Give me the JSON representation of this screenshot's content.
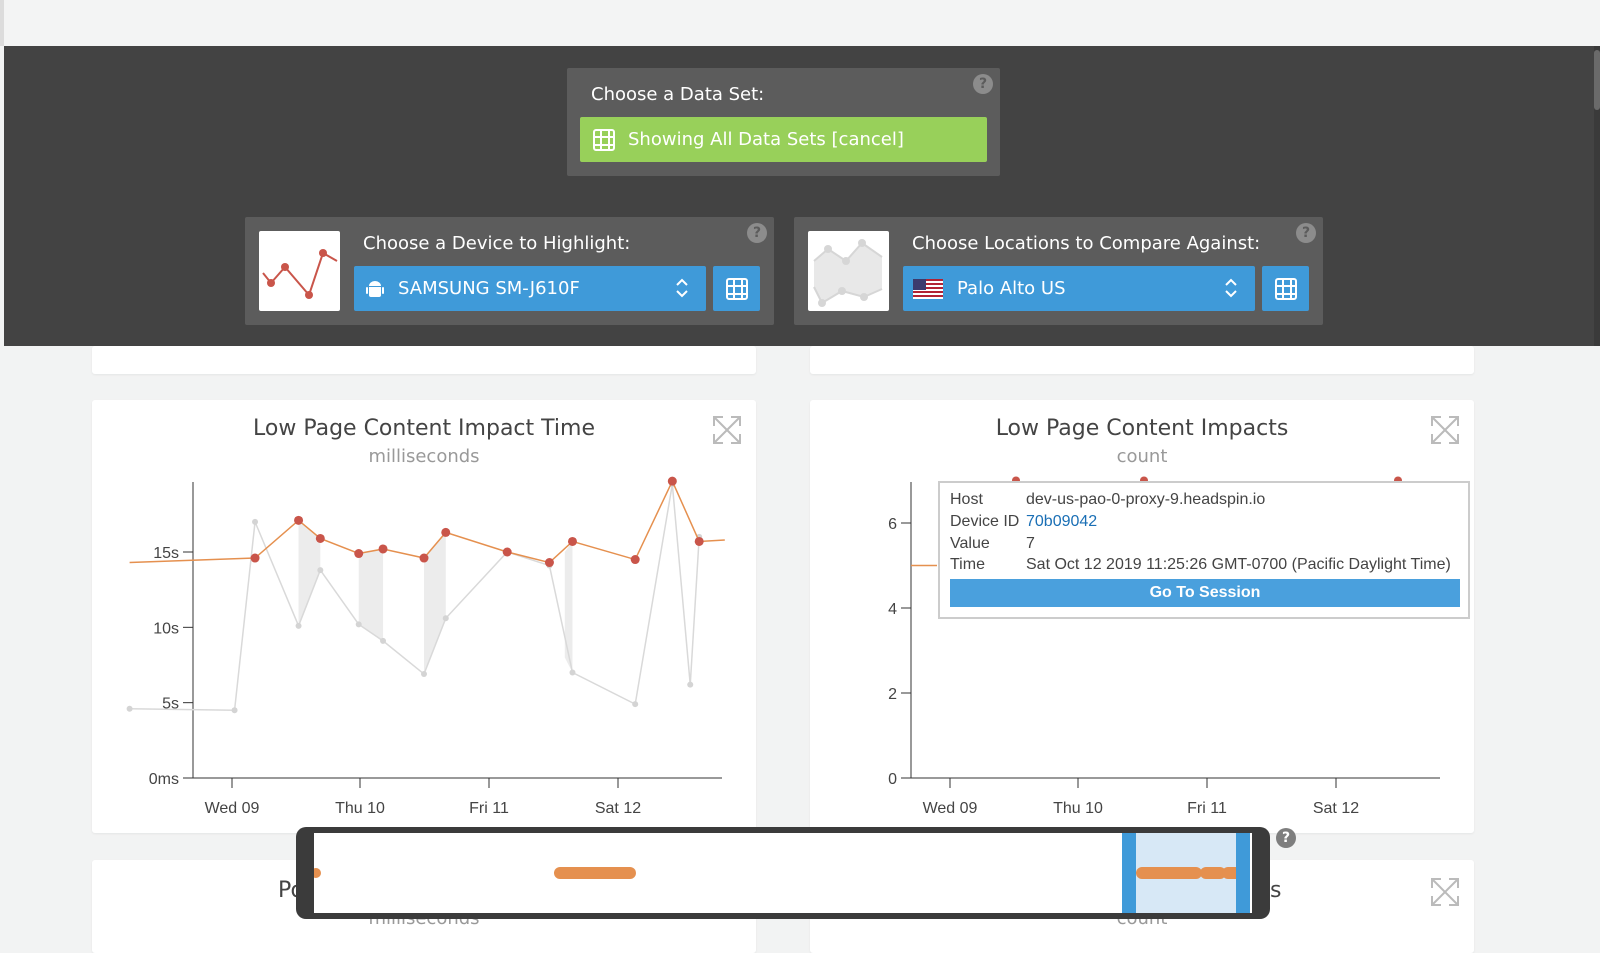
{
  "dataset_panel": {
    "label": "Choose a Data Set:",
    "button_label": "Showing All Data Sets [cancel]",
    "help": "?"
  },
  "device_panel": {
    "label": "Choose a Device to Highlight:",
    "selected_device": "SAMSUNG SM-J610F",
    "help": "?"
  },
  "location_panel": {
    "label": "Choose Locations to Compare Against:",
    "selected_location": "Palo Alto US",
    "help": "?"
  },
  "colors": {
    "dark_bar": "#434343",
    "panel": "#5c5c5c",
    "green": "#98d05a",
    "blue": "#3f9ad9",
    "highlight_series": "#e5904f",
    "highlight_dot": "#c9554a",
    "compare_series": "#d9d9d9"
  },
  "charts": [
    {
      "title": "Low Page Content Impact Time",
      "subtitle": "milliseconds",
      "y_ticks": [
        "0ms",
        "5s",
        "10s",
        "15s"
      ],
      "x_ticks": [
        "Wed 09",
        "Thu 10",
        "Fri 11",
        "Sat 12"
      ]
    },
    {
      "title": "Low Page Content Impacts",
      "subtitle": "count",
      "y_ticks": [
        "0",
        "2",
        "4",
        "6"
      ],
      "x_ticks": [
        "Wed 09",
        "Thu 10",
        "Fri 11",
        "Sat 12"
      ]
    }
  ],
  "chart_data": [
    {
      "type": "line",
      "title": "Low Page Content Impact Time",
      "ylabel": "milliseconds",
      "ylim": [
        0,
        20
      ],
      "y_unit": "seconds",
      "x_range_days": [
        8.2,
        12.9
      ],
      "x_ticks": [
        "Wed 09",
        "Thu 10",
        "Fri 11",
        "Sat 12"
      ],
      "series": [
        {
          "name": "SAMSUNG SM-J610F",
          "x": [
            8.2,
            9.18,
            9.52,
            9.69,
            9.99,
            10.18,
            10.5,
            10.67,
            11.15,
            11.48,
            11.66,
            12.15,
            12.44,
            12.65,
            12.85
          ],
          "y": [
            14.3,
            14.6,
            17.1,
            15.9,
            14.9,
            15.2,
            14.6,
            16.3,
            15.0,
            14.3,
            15.7,
            14.5,
            19.7,
            15.7,
            15.8
          ]
        },
        {
          "name": "Palo Alto US",
          "x": [
            8.2,
            9.02,
            9.18,
            9.52,
            9.69,
            9.99,
            10.18,
            10.5,
            10.67,
            11.15,
            11.48,
            11.66,
            12.15,
            12.44,
            12.58,
            12.65
          ],
          "y": [
            4.6,
            4.5,
            17.0,
            10.1,
            13.8,
            10.2,
            9.1,
            6.9,
            10.6,
            15.0,
            14.1,
            7.0,
            4.9,
            19.5,
            6.2,
            16.0
          ]
        }
      ]
    },
    {
      "type": "scatter",
      "title": "Low Page Content Impacts",
      "ylabel": "count",
      "ylim": [
        0,
        7
      ],
      "x_ticks": [
        "Wed 09",
        "Thu 10",
        "Fri 11",
        "Sat 12"
      ],
      "series": [
        {
          "name": "SAMSUNG SM-J610F",
          "x": [
            8.2,
            9.5,
            10.5,
            12.5
          ],
          "y": [
            5,
            7,
            7,
            7
          ]
        }
      ]
    }
  ],
  "tooltip": {
    "host_key": "Host",
    "host_val": "dev-us-pao-0-proxy-9.headspin.io",
    "device_key": "Device ID",
    "device_val": "70b09042",
    "value_key": "Value",
    "value_val": "7",
    "time_key": "Time",
    "time_val": "Sat Oct 12 2019 11:25:26 GMT-0700 (Pacific Daylight Time)",
    "button": "Go To Session"
  },
  "navigator": {
    "help": "?"
  },
  "lower_cards": [
    {
      "title_fragment": "Po",
      "subtitle_fragment": "milliseconds"
    },
    {
      "title_fragment": "s",
      "subtitle_fragment": "count"
    }
  ]
}
